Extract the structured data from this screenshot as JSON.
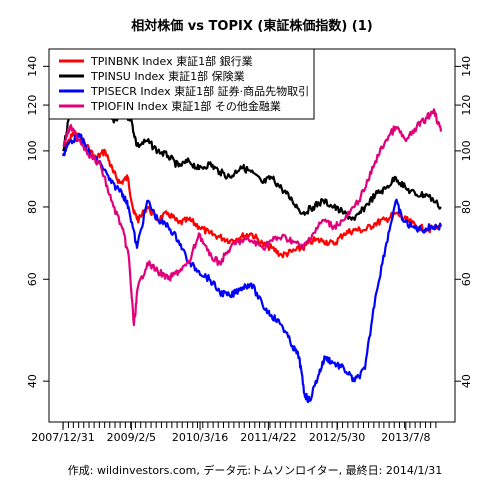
{
  "chart_data": {
    "type": "line",
    "title": "相対株価 vs TOPIX (東証株価指数) (1)",
    "caption": "作成: wildinvestors.com, データ元:トムソンロイター, 最終日: 2014/1/31",
    "y_scale": "log",
    "ylim": [
      34,
      150
    ],
    "y_ticks": [
      40,
      60,
      80,
      100,
      120,
      140
    ],
    "x_start": "2007-12-31",
    "x_end": "2014-01-31",
    "x_tick_labels": [
      {
        "label": "2007/12/31",
        "date": "2007-12-31"
      },
      {
        "label": "2009/2/5",
        "date": "2009-02-05"
      },
      {
        "label": "2010/3/16",
        "date": "2010-03-16"
      },
      {
        "label": "2011/4/22",
        "date": "2011-04-22"
      },
      {
        "label": "2012/5/30",
        "date": "2012-05-30"
      },
      {
        "label": "2013/7/8",
        "date": "2013-07-08"
      }
    ],
    "legend_position": "top-left",
    "series": [
      {
        "name": "TPINBNK Index 東証1部 銀行業",
        "color": "#ff0000",
        "points": [
          [
            "2007-12-31",
            100
          ],
          [
            "2008-01-25",
            103
          ],
          [
            "2008-03-10",
            108
          ],
          [
            "2008-05-20",
            102
          ],
          [
            "2008-07-10",
            97
          ],
          [
            "2008-09-05",
            100
          ],
          [
            "2008-10-20",
            92
          ],
          [
            "2008-12-01",
            88
          ],
          [
            "2009-01-15",
            90
          ],
          [
            "2009-02-20",
            78
          ],
          [
            "2009-03-20",
            76
          ],
          [
            "2009-05-10",
            80
          ],
          [
            "2009-07-10",
            76
          ],
          [
            "2009-09-10",
            78
          ],
          [
            "2009-11-10",
            75
          ],
          [
            "2010-01-10",
            76
          ],
          [
            "2010-03-10",
            74
          ],
          [
            "2010-05-10",
            72
          ],
          [
            "2010-07-10",
            71
          ],
          [
            "2010-09-10",
            70
          ],
          [
            "2010-11-10",
            71
          ],
          [
            "2011-01-10",
            72
          ],
          [
            "2011-03-20",
            69
          ],
          [
            "2011-05-10",
            68
          ],
          [
            "2011-07-10",
            66
          ],
          [
            "2011-09-10",
            67
          ],
          [
            "2011-11-10",
            68
          ],
          [
            "2012-01-10",
            70
          ],
          [
            "2012-03-10",
            70
          ],
          [
            "2012-05-10",
            69
          ],
          [
            "2012-07-10",
            72
          ],
          [
            "2012-09-10",
            73
          ],
          [
            "2012-11-10",
            73
          ],
          [
            "2013-01-10",
            75
          ],
          [
            "2013-03-10",
            76
          ],
          [
            "2013-05-10",
            78
          ],
          [
            "2013-07-10",
            76
          ],
          [
            "2013-09-10",
            74
          ],
          [
            "2013-11-10",
            73
          ],
          [
            "2014-01-31",
            74
          ]
        ]
      },
      {
        "name": "TPINSU Index 東証1部 保険業",
        "color": "#000000",
        "points": [
          [
            "2007-12-31",
            100
          ],
          [
            "2008-02-15",
            118
          ],
          [
            "2008-04-10",
            128
          ],
          [
            "2008-06-10",
            124
          ],
          [
            "2008-08-10",
            128
          ],
          [
            "2008-09-20",
            120
          ],
          [
            "2008-10-25",
            112
          ],
          [
            "2008-12-10",
            116
          ],
          [
            "2009-02-01",
            114
          ],
          [
            "2009-03-10",
            102
          ],
          [
            "2009-05-10",
            104
          ],
          [
            "2009-07-10",
            100
          ],
          [
            "2009-09-10",
            98
          ],
          [
            "2009-11-10",
            94
          ],
          [
            "2010-01-10",
            96
          ],
          [
            "2010-03-10",
            93
          ],
          [
            "2010-05-10",
            95
          ],
          [
            "2010-07-10",
            92
          ],
          [
            "2010-09-10",
            90
          ],
          [
            "2010-11-10",
            94
          ],
          [
            "2011-01-10",
            92
          ],
          [
            "2011-03-20",
            88
          ],
          [
            "2011-05-10",
            90
          ],
          [
            "2011-07-10",
            86
          ],
          [
            "2011-09-10",
            82
          ],
          [
            "2011-11-10",
            78
          ],
          [
            "2012-01-10",
            80
          ],
          [
            "2012-03-10",
            82
          ],
          [
            "2012-05-10",
            80
          ],
          [
            "2012-07-10",
            78
          ],
          [
            "2012-09-10",
            76
          ],
          [
            "2012-11-10",
            80
          ],
          [
            "2013-01-10",
            84
          ],
          [
            "2013-03-10",
            86
          ],
          [
            "2013-05-10",
            90
          ],
          [
            "2013-07-10",
            86
          ],
          [
            "2013-09-10",
            84
          ],
          [
            "2013-11-10",
            84
          ],
          [
            "2014-01-31",
            80
          ]
        ]
      },
      {
        "name": "TPISECR Index 東証1部 証券·商品先物取引",
        "color": "#0000ff",
        "points": [
          [
            "2007-12-31",
            98
          ],
          [
            "2008-02-10",
            104
          ],
          [
            "2008-04-10",
            106
          ],
          [
            "2008-06-10",
            98
          ],
          [
            "2008-08-10",
            95
          ],
          [
            "2008-10-10",
            88
          ],
          [
            "2008-12-10",
            85
          ],
          [
            "2009-01-20",
            80
          ],
          [
            "2009-03-10",
            68
          ],
          [
            "2009-05-10",
            82
          ],
          [
            "2009-07-10",
            76
          ],
          [
            "2009-09-10",
            74
          ],
          [
            "2009-11-10",
            70
          ],
          [
            "2010-01-10",
            64
          ],
          [
            "2010-03-10",
            62
          ],
          [
            "2010-05-10",
            60
          ],
          [
            "2010-07-10",
            57
          ],
          [
            "2010-09-10",
            56
          ],
          [
            "2010-11-10",
            58
          ],
          [
            "2011-01-10",
            59
          ],
          [
            "2011-03-20",
            54
          ],
          [
            "2011-05-10",
            52
          ],
          [
            "2011-07-10",
            50
          ],
          [
            "2011-09-10",
            46
          ],
          [
            "2011-10-20",
            44
          ],
          [
            "2011-11-20",
            38
          ],
          [
            "2011-12-20",
            37
          ],
          [
            "2012-02-10",
            41
          ],
          [
            "2012-03-20",
            44
          ],
          [
            "2012-05-10",
            43
          ],
          [
            "2012-07-10",
            42
          ],
          [
            "2012-09-10",
            40
          ],
          [
            "2012-11-10",
            42
          ],
          [
            "2013-01-10",
            56
          ],
          [
            "2013-03-10",
            68
          ],
          [
            "2013-05-10",
            82
          ],
          [
            "2013-06-20",
            76
          ],
          [
            "2013-08-10",
            74
          ],
          [
            "2013-10-10",
            73
          ],
          [
            "2013-12-10",
            74
          ],
          [
            "2014-01-31",
            74
          ]
        ]
      },
      {
        "name": "TPIOFIN Index 東証1部 その他金融業",
        "color": "#e0007a",
        "points": [
          [
            "2007-12-31",
            102
          ],
          [
            "2008-02-10",
            110
          ],
          [
            "2008-04-10",
            104
          ],
          [
            "2008-06-10",
            98
          ],
          [
            "2008-08-10",
            94
          ],
          [
            "2008-10-10",
            82
          ],
          [
            "2008-12-10",
            74
          ],
          [
            "2009-01-20",
            66
          ],
          [
            "2009-02-20",
            50
          ],
          [
            "2009-03-15",
            58
          ],
          [
            "2009-05-10",
            64
          ],
          [
            "2009-07-10",
            62
          ],
          [
            "2009-09-10",
            60
          ],
          [
            "2009-11-10",
            62
          ],
          [
            "2010-01-10",
            64
          ],
          [
            "2010-03-10",
            72
          ],
          [
            "2010-05-10",
            66
          ],
          [
            "2010-07-10",
            64
          ],
          [
            "2010-09-10",
            68
          ],
          [
            "2010-11-10",
            70
          ],
          [
            "2011-01-10",
            70
          ],
          [
            "2011-03-20",
            68
          ],
          [
            "2011-05-10",
            70
          ],
          [
            "2011-07-10",
            71
          ],
          [
            "2011-09-10",
            70
          ],
          [
            "2011-11-10",
            68
          ],
          [
            "2012-01-10",
            72
          ],
          [
            "2012-03-10",
            76
          ],
          [
            "2012-05-10",
            74
          ],
          [
            "2012-07-10",
            76
          ],
          [
            "2012-09-10",
            80
          ],
          [
            "2012-11-10",
            86
          ],
          [
            "2013-01-10",
            96
          ],
          [
            "2013-03-10",
            104
          ],
          [
            "2013-05-10",
            110
          ],
          [
            "2013-07-10",
            104
          ],
          [
            "2013-09-10",
            110
          ],
          [
            "2013-11-10",
            114
          ],
          [
            "2013-12-20",
            118
          ],
          [
            "2014-01-31",
            108
          ]
        ]
      }
    ]
  }
}
